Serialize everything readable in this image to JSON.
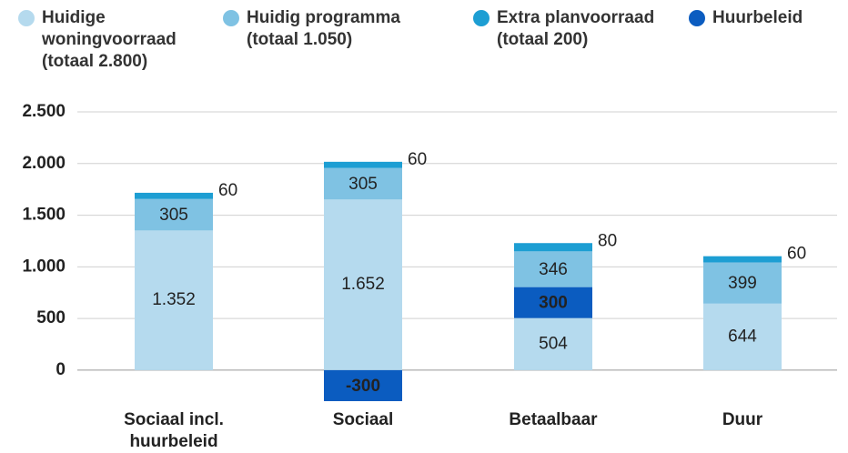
{
  "chart_data": {
    "type": "stacked_bar",
    "categories": [
      "Sociaal incl. huurbeleid",
      "Sociaal",
      "Betaalbaar",
      "Duur"
    ],
    "series": [
      {
        "name": "Huidige woningvoorraad (totaal 2.800)",
        "color": "#b5daee",
        "values": [
          1352,
          1652,
          504,
          644
        ],
        "value_labels": [
          "1.352",
          "1.652",
          "504",
          "644"
        ]
      },
      {
        "name": "Huidig programma (totaal 1.050)",
        "color": "#7fc2e3",
        "values": [
          305,
          305,
          346,
          399
        ]
      },
      {
        "name": "Extra planvoorraad (totaal 200)",
        "color": "#1d9ed3",
        "values": [
          60,
          60,
          80,
          60
        ]
      },
      {
        "name": "Huurbeleid",
        "color": "#0b5cc0",
        "values": [
          null,
          -300,
          300,
          null
        ]
      }
    ],
    "ylim": [
      -300,
      2500
    ],
    "yticks": [
      0,
      500,
      {
        "value": 1000,
        "label": "1.000"
      },
      {
        "value": 1500,
        "label": "1.500"
      },
      {
        "value": 2000,
        "label": "2.000"
      },
      {
        "value": 2500,
        "label": "2.500"
      }
    ],
    "grid": true
  }
}
